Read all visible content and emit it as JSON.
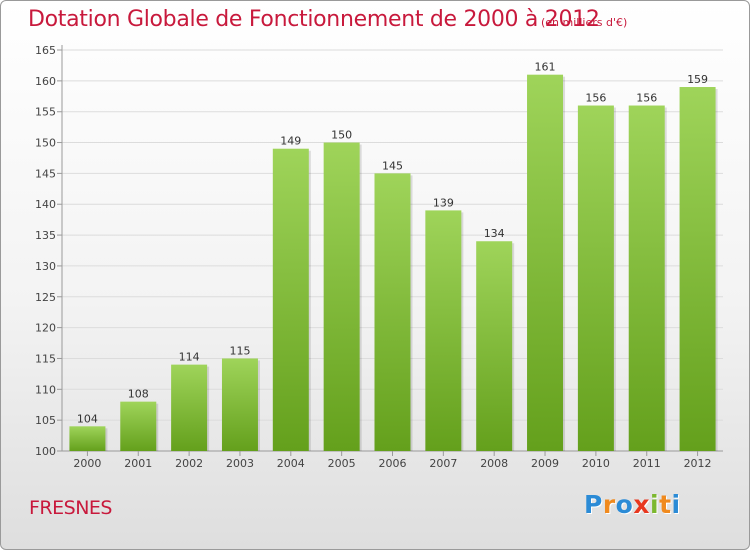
{
  "chart_data": {
    "type": "bar",
    "title": "Dotation Globale de Fonctionnement de 2000 à 2012",
    "subtitle": "(en milliers d'€)",
    "categories": [
      "2000",
      "2001",
      "2002",
      "2003",
      "2004",
      "2005",
      "2006",
      "2007",
      "2008",
      "2009",
      "2010",
      "2011",
      "2012"
    ],
    "values": [
      104,
      108,
      114,
      115,
      149,
      150,
      145,
      139,
      134,
      161,
      156,
      156,
      159
    ],
    "ylim": [
      100,
      165
    ],
    "yticks": [
      100,
      105,
      110,
      115,
      120,
      125,
      130,
      135,
      140,
      145,
      150,
      155,
      160,
      165
    ],
    "grid": true,
    "bar_color_top": "#9fd45a",
    "bar_color_bottom": "#64a01c",
    "label_color": "#333333"
  },
  "footer": {
    "commune": "FRESNES"
  },
  "logo": {
    "letters": [
      "P",
      "r",
      "o",
      "x",
      "i",
      "t",
      "i"
    ],
    "colors": [
      "#2b8bd6",
      "#f08a1e",
      "#2b8bd6",
      "#e8371f",
      "#7cb82f",
      "#f08a1e",
      "#2b8bd6"
    ]
  }
}
